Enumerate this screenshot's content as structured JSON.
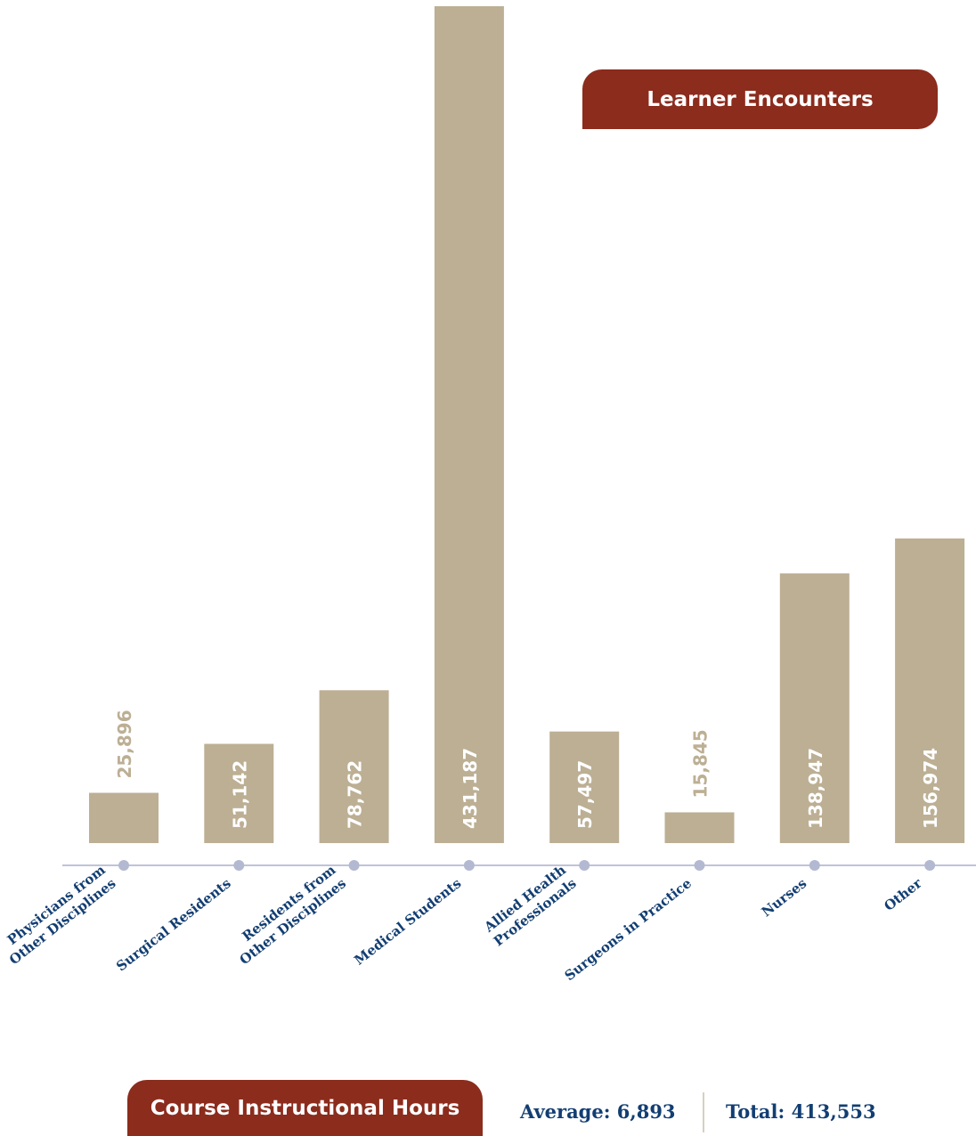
{
  "learner_badge": "Learner Encounters",
  "course_badge": "Course Instructional Hours",
  "stats": {
    "average": "Average: 6,893",
    "total": "Total: 413,553"
  },
  "colors": {
    "bar": "#bcaf94",
    "badge": "#8b2c1d",
    "category_text": "#123e72",
    "axis": "#a9b0cc",
    "dot": "#b4b9d2",
    "inside_label": "#ffffff"
  },
  "chart_data": {
    "type": "bar",
    "categories": [
      [
        "Physicians from",
        "Other Disciplines"
      ],
      [
        "Surgical Residents"
      ],
      [
        "Residents from",
        "Other Disciplines"
      ],
      [
        "Medical Students"
      ],
      [
        "Allied Health",
        "Professionals"
      ],
      [
        "Surgeons in Practice"
      ],
      [
        "Nurses"
      ],
      [
        "Other"
      ]
    ],
    "values": [
      25896,
      51142,
      78762,
      431187,
      57497,
      15845,
      138947,
      156974
    ],
    "value_labels": [
      "25,896",
      "51,142",
      "78,762",
      "431,187",
      "57,497",
      "15,845",
      "138,947",
      "156,974"
    ],
    "title": "",
    "xlabel": "",
    "ylabel": "",
    "ylim": [
      0,
      431187
    ],
    "grid": false
  }
}
